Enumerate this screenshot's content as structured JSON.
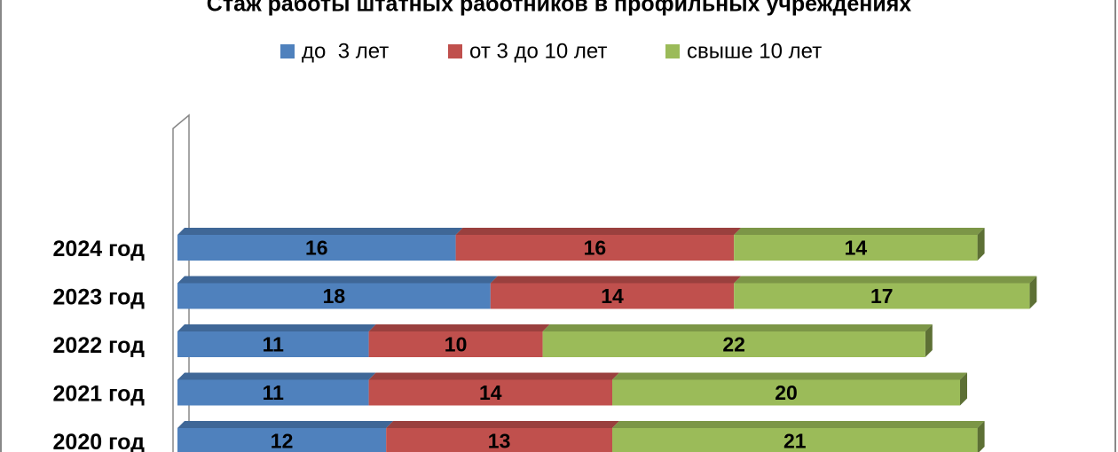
{
  "chart_data": {
    "type": "stacked-bar-horizontal",
    "title": "Стаж работы штатных работников в профильных учреждениях",
    "categories": [
      "2024 год",
      "2023 год",
      "2022 год",
      "2021 год",
      "2020 год"
    ],
    "series": [
      {
        "name": "до  3 лет",
        "color": "#4f81bd",
        "values": [
          16,
          18,
          11,
          11,
          12
        ]
      },
      {
        "name": "от 3 до 10 лет",
        "color": "#c0504d",
        "values": [
          16,
          14,
          10,
          14,
          13
        ]
      },
      {
        "name": "свыше 10 лет",
        "color": "#9bbb59",
        "values": [
          14,
          17,
          22,
          20,
          21
        ]
      }
    ],
    "legend": "top"
  }
}
